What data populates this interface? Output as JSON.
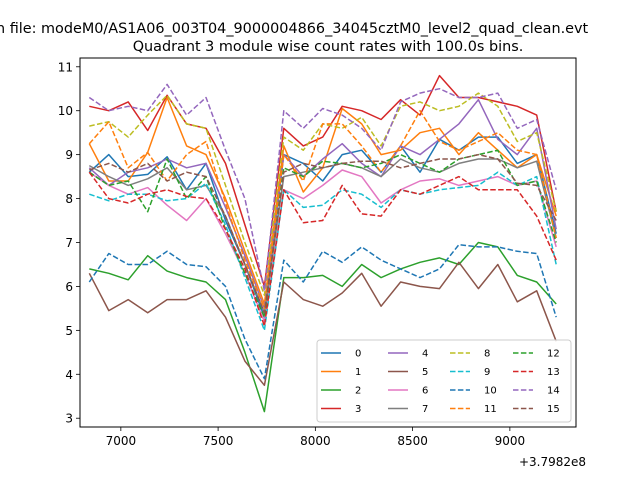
{
  "chart_data": {
    "type": "line",
    "title": "Quadrant 3 module wise count rates with 100.0s bins.",
    "suptitle": "h file: modeM0/AS1A06_003T04_9000004866_34045cztM0_level2_quad_clean.evt",
    "xlabel": "",
    "ylabel": "",
    "x_offset_label": "+3.7982e8",
    "xlim": [
      6790,
      9340
    ],
    "ylim": [
      2.8,
      11.2
    ],
    "x_ticks": [
      7000,
      7500,
      8000,
      8500,
      9000
    ],
    "x_tick_labels": [
      "7000",
      "7500",
      "8000",
      "8500",
      "9000"
    ],
    "y_ticks": [
      3,
      4,
      5,
      6,
      7,
      8,
      9,
      10,
      11
    ],
    "y_tick_labels": [
      "3",
      "4",
      "5",
      "6",
      "7",
      "8",
      "9",
      "10",
      "11"
    ],
    "grid": false,
    "legend_position": "lower-right",
    "legend_columns": 4,
    "x": [
      6838,
      6938,
      7038,
      7138,
      7238,
      7338,
      7438,
      7538,
      7638,
      7738,
      7838,
      7938,
      8038,
      8138,
      8238,
      8338,
      8438,
      8538,
      8638,
      8738,
      8838,
      8938,
      9038,
      9138,
      9238
    ],
    "series": [
      {
        "name": "0",
        "color": "#1f77b4",
        "dash": "solid",
        "values": [
          8.6,
          9.0,
          8.5,
          8.55,
          8.95,
          8.2,
          8.8,
          7.5,
          6.5,
          5.3,
          9.0,
          8.8,
          8.4,
          9.0,
          9.1,
          8.6,
          9.2,
          8.6,
          9.35,
          9.1,
          9.4,
          9.4,
          8.8,
          9.0,
          7.2
        ]
      },
      {
        "name": "1",
        "color": "#ff7f0e",
        "dash": "solid",
        "values": [
          9.25,
          8.4,
          8.4,
          9.05,
          10.3,
          9.2,
          9.0,
          8.0,
          6.8,
          5.6,
          9.2,
          8.15,
          8.7,
          10.05,
          9.7,
          9.0,
          9.1,
          9.5,
          9.6,
          9.0,
          9.5,
          9.1,
          8.7,
          9.0,
          7.6
        ]
      },
      {
        "name": "2",
        "color": "#2ca02c",
        "dash": "solid",
        "values": [
          6.4,
          6.3,
          6.15,
          6.7,
          6.35,
          6.2,
          6.1,
          5.7,
          4.5,
          3.15,
          6.2,
          6.2,
          6.25,
          6.0,
          6.5,
          6.2,
          6.4,
          6.55,
          6.65,
          6.5,
          7.0,
          6.9,
          6.25,
          6.1,
          5.6
        ]
      },
      {
        "name": "3",
        "color": "#d62728",
        "dash": "solid",
        "values": [
          10.1,
          10.0,
          10.2,
          9.55,
          10.35,
          9.7,
          9.6,
          8.8,
          7.4,
          6.0,
          9.6,
          9.2,
          9.4,
          10.1,
          10.0,
          9.8,
          10.25,
          9.9,
          10.8,
          10.3,
          10.3,
          10.2,
          10.1,
          9.9,
          7.7
        ]
      },
      {
        "name": "4",
        "color": "#9467bd",
        "dash": "solid",
        "values": [
          8.7,
          8.3,
          8.6,
          8.7,
          8.9,
          8.7,
          8.8,
          7.8,
          6.7,
          5.5,
          9.0,
          8.5,
          8.9,
          9.25,
          8.8,
          8.5,
          9.2,
          9.0,
          9.35,
          9.7,
          10.25,
          9.35,
          9.0,
          9.6,
          7.3
        ]
      },
      {
        "name": "5",
        "color": "#8c564b",
        "dash": "solid",
        "values": [
          6.3,
          5.45,
          5.7,
          5.4,
          5.7,
          5.7,
          5.9,
          5.3,
          4.3,
          3.75,
          6.1,
          5.7,
          5.55,
          5.85,
          6.3,
          5.55,
          6.1,
          6.0,
          5.95,
          6.55,
          5.95,
          6.5,
          5.65,
          5.9,
          4.75
        ]
      },
      {
        "name": "6",
        "color": "#e377c2",
        "dash": "solid",
        "values": [
          8.6,
          8.3,
          8.1,
          8.25,
          7.85,
          7.5,
          8.0,
          7.2,
          6.3,
          5.2,
          8.2,
          8.0,
          8.3,
          8.65,
          8.5,
          7.9,
          8.2,
          8.4,
          8.45,
          8.3,
          8.4,
          8.5,
          8.3,
          8.4,
          6.9
        ]
      },
      {
        "name": "7",
        "color": "#7f7f7f",
        "dash": "solid",
        "values": [
          8.75,
          8.5,
          8.3,
          8.45,
          8.7,
          8.2,
          8.3,
          7.6,
          6.5,
          5.4,
          8.5,
          8.6,
          8.7,
          8.8,
          8.7,
          8.5,
          8.9,
          8.7,
          8.6,
          8.8,
          8.9,
          8.9,
          8.7,
          8.85,
          7.1
        ]
      },
      {
        "name": "8",
        "color": "#bcbd22",
        "dash": "dashed",
        "values": [
          9.65,
          9.75,
          9.4,
          9.9,
          10.35,
          9.7,
          9.6,
          8.3,
          7.0,
          5.8,
          9.4,
          9.1,
          9.7,
          9.6,
          9.85,
          9.2,
          10.1,
          10.2,
          10.0,
          10.1,
          10.4,
          10.1,
          9.3,
          9.5,
          7.7
        ]
      },
      {
        "name": "9",
        "color": "#17becf",
        "dash": "dashed",
        "values": [
          8.1,
          7.95,
          8.1,
          8.1,
          7.95,
          8.0,
          8.35,
          7.4,
          6.2,
          5.0,
          8.2,
          7.8,
          7.85,
          8.2,
          8.1,
          7.8,
          8.2,
          8.1,
          8.2,
          8.25,
          8.3,
          8.6,
          8.3,
          8.5,
          6.5
        ]
      },
      {
        "name": "10",
        "color": "#1f77b4",
        "dash": "dashed",
        "values": [
          6.1,
          6.75,
          6.5,
          6.5,
          6.8,
          6.5,
          6.45,
          6.0,
          4.8,
          3.9,
          6.6,
          6.1,
          6.8,
          6.55,
          6.9,
          6.6,
          6.4,
          6.2,
          6.4,
          6.95,
          6.9,
          6.9,
          6.8,
          6.75,
          5.3
        ]
      },
      {
        "name": "11",
        "color": "#ff7f0e",
        "dash": "dashed",
        "values": [
          9.25,
          9.75,
          8.7,
          9.05,
          8.4,
          9.0,
          9.3,
          7.9,
          6.6,
          5.5,
          9.0,
          8.4,
          9.7,
          9.7,
          9.2,
          8.6,
          9.2,
          10.0,
          9.3,
          9.1,
          9.3,
          9.5,
          9.1,
          9.0,
          7.1
        ]
      },
      {
        "name": "12",
        "color": "#2ca02c",
        "dash": "dashed",
        "values": [
          8.6,
          8.3,
          8.4,
          7.7,
          8.9,
          8.0,
          8.5,
          7.3,
          6.3,
          5.3,
          8.7,
          8.5,
          8.85,
          8.8,
          8.7,
          8.8,
          9.0,
          8.8,
          8.6,
          8.9,
          9.0,
          9.1,
          8.3,
          8.4,
          7.0
        ]
      },
      {
        "name": "13",
        "color": "#d62728",
        "dash": "dashed",
        "values": [
          8.6,
          8.0,
          7.9,
          8.1,
          8.2,
          8.05,
          8.0,
          7.3,
          6.4,
          5.1,
          8.2,
          7.45,
          7.5,
          8.3,
          7.65,
          7.6,
          8.2,
          8.1,
          8.3,
          8.5,
          8.2,
          8.2,
          8.2,
          7.6,
          6.6
        ]
      },
      {
        "name": "14",
        "color": "#9467bd",
        "dash": "dashed",
        "values": [
          10.3,
          10.0,
          10.1,
          10.0,
          10.6,
          9.9,
          10.3,
          9.1,
          8.0,
          5.9,
          10.0,
          9.6,
          10.05,
          9.9,
          9.6,
          9.1,
          10.2,
          10.4,
          10.5,
          10.3,
          10.3,
          10.4,
          9.6,
          9.8,
          8.2
        ]
      },
      {
        "name": "15",
        "color": "#8c564b",
        "dash": "dashed",
        "values": [
          8.65,
          8.8,
          8.6,
          8.8,
          8.4,
          8.6,
          8.5,
          7.6,
          6.5,
          5.4,
          8.6,
          8.8,
          8.7,
          8.8,
          8.85,
          8.85,
          8.7,
          8.8,
          8.9,
          8.9,
          9.0,
          8.9,
          8.35,
          8.3,
          7.5
        ]
      }
    ]
  }
}
